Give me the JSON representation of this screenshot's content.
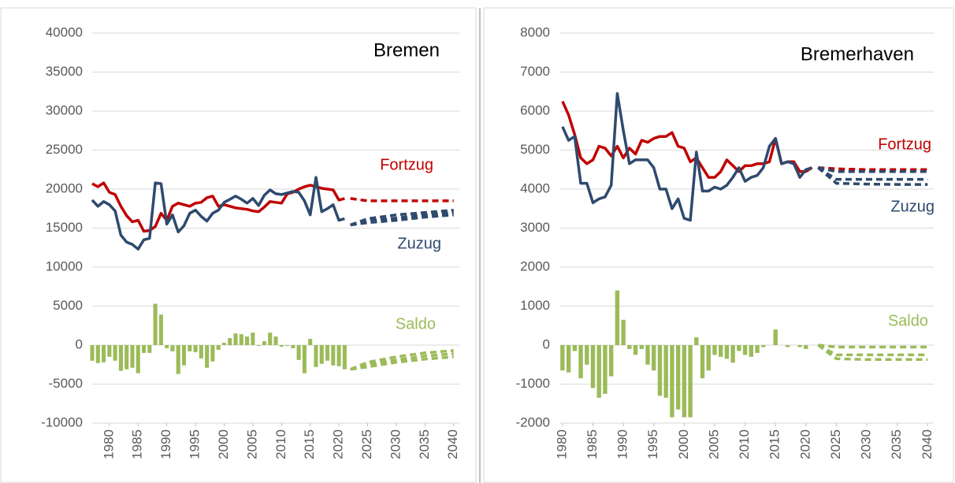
{
  "chart_data": [
    {
      "type": "combo",
      "title": "Bremen",
      "x": [
        1977,
        1978,
        1979,
        1980,
        1981,
        1982,
        1983,
        1984,
        1985,
        1986,
        1987,
        1988,
        1989,
        1990,
        1991,
        1992,
        1993,
        1994,
        1995,
        1996,
        1997,
        1998,
        1999,
        2000,
        2001,
        2002,
        2003,
        2004,
        2005,
        2006,
        2007,
        2008,
        2009,
        2010,
        2011,
        2012,
        2013,
        2014,
        2015,
        2016,
        2017,
        2018,
        2019,
        2020,
        2021
      ],
      "projection_x": [
        2022,
        2025,
        2030,
        2035,
        2040
      ],
      "xlim": [
        1977,
        2041
      ],
      "xticks": [
        1980,
        1985,
        1990,
        1995,
        2000,
        2005,
        2010,
        2015,
        2020,
        2025,
        2030,
        2035,
        2040
      ],
      "ylim": [
        -10000,
        40000
      ],
      "yticks": [
        -10000,
        -5000,
        0,
        5000,
        10000,
        15000,
        20000,
        25000,
        30000,
        35000,
        40000
      ],
      "grid": true,
      "series": [
        {
          "name": "Fortzug",
          "color": "#c00000",
          "type": "line",
          "values": [
            20700,
            20300,
            20800,
            19600,
            19300,
            17800,
            16600,
            15800,
            16000,
            14600,
            14700,
            15200,
            16900,
            16000,
            17800,
            18200,
            18000,
            17800,
            18200,
            18300,
            18900,
            19100,
            17800,
            18000,
            17800,
            17600,
            17500,
            17400,
            17200,
            17100,
            17700,
            18400,
            18300,
            18200,
            19400,
            19600,
            20000,
            20300,
            20500,
            20300,
            20100,
            20000,
            19900,
            18600,
            18800
          ],
          "projections": [
            [
              18800,
              18500,
              18500,
              18500,
              18500
            ]
          ]
        },
        {
          "name": "Zuzug",
          "color": "#2e4a6e",
          "type": "line",
          "values": [
            18600,
            17800,
            18400,
            18000,
            17200,
            14100,
            13200,
            12900,
            12300,
            13500,
            13700,
            20800,
            20700,
            15500,
            16700,
            14500,
            15300,
            16900,
            17300,
            16500,
            15900,
            16900,
            17300,
            18300,
            18700,
            19100,
            18700,
            18200,
            18800,
            17900,
            19200,
            19900,
            19400,
            19300,
            19500,
            19700,
            19600,
            18500,
            16700,
            21500,
            17100,
            17500,
            18000,
            16000,
            16200
          ],
          "projections": [
            [
              15400,
              16200,
              16700,
              17000,
              17300
            ],
            [
              15400,
              15900,
              16300,
              16700,
              17000
            ],
            [
              15400,
              15700,
              16000,
              16400,
              16700
            ]
          ]
        },
        {
          "name": "Saldo",
          "color": "#9bbb59",
          "type": "bar",
          "values": [
            -2000,
            -2300,
            -2200,
            -1500,
            -2000,
            -3300,
            -3100,
            -2900,
            -3600,
            -1000,
            -1000,
            5300,
            3900,
            -400,
            -800,
            -3700,
            -2600,
            -800,
            -900,
            -1700,
            -2900,
            -2100,
            -600,
            300,
            900,
            1500,
            1400,
            1100,
            1600,
            -100,
            500,
            1600,
            1100,
            -200,
            -100,
            -400,
            -1900,
            -3600,
            800,
            -2800,
            -2400,
            -2000,
            -2600,
            -2700,
            -3100
          ],
          "projections": [
            [
              -3100,
              -2200,
              -1500,
              -1000,
              -700
            ],
            [
              -3100,
              -2500,
              -1900,
              -1400,
              -1100
            ],
            [
              -3100,
              -2800,
              -2200,
              -1800,
              -1500
            ]
          ]
        }
      ]
    },
    {
      "type": "combo",
      "title": "Bremerhaven",
      "x": [
        1980,
        1981,
        1982,
        1983,
        1984,
        1985,
        1986,
        1987,
        1988,
        1989,
        1990,
        1991,
        1992,
        1993,
        1994,
        1995,
        1996,
        1997,
        1998,
        1999,
        2000,
        2001,
        2002,
        2003,
        2004,
        2005,
        2006,
        2007,
        2008,
        2009,
        2010,
        2011,
        2012,
        2013,
        2014,
        2015,
        2016,
        2017,
        2018,
        2019,
        2020,
        2021
      ],
      "projection_x": [
        2022,
        2025,
        2030,
        2035,
        2040
      ],
      "xlim": [
        1979.5,
        2041
      ],
      "xticks": [
        1980,
        1985,
        1990,
        1995,
        2000,
        2005,
        2010,
        2015,
        2020,
        2025,
        2030,
        2035,
        2040
      ],
      "ylim": [
        -2000,
        8000
      ],
      "yticks": [
        -2000,
        -1000,
        0,
        1000,
        2000,
        3000,
        4000,
        5000,
        6000,
        7000,
        8000
      ],
      "grid": true,
      "series": [
        {
          "name": "Fortzug",
          "color": "#c00000",
          "type": "line",
          "values": [
            6250,
            5900,
            5400,
            4800,
            4650,
            4750,
            5100,
            5050,
            4850,
            5100,
            4800,
            5050,
            4900,
            5250,
            5200,
            5300,
            5350,
            5350,
            5450,
            5100,
            5050,
            4700,
            4800,
            4550,
            4300,
            4300,
            4450,
            4750,
            4600,
            4450,
            4600,
            4600,
            4650,
            4650,
            4700,
            5300,
            4650,
            4700,
            4700,
            4450,
            4450,
            4550
          ],
          "projections": [
            [
              4550,
              4520,
              4500,
              4500,
              4500
            ]
          ]
        },
        {
          "name": "Zuzug",
          "color": "#2e4a6e",
          "type": "line",
          "values": [
            5600,
            5250,
            5350,
            4150,
            4150,
            3650,
            3750,
            3800,
            4100,
            6450,
            5500,
            4650,
            4750,
            4750,
            4750,
            4550,
            4000,
            4000,
            3500,
            3750,
            3250,
            3200,
            4950,
            3950,
            3950,
            4050,
            4000,
            4100,
            4300,
            4550,
            4200,
            4300,
            4350,
            4550,
            5100,
            5300,
            4650,
            4700,
            4650,
            4300,
            4500,
            4550
          ],
          "projections": [
            [
              4550,
              4450,
              4450,
              4450,
              4450
            ],
            [
              4550,
              4250,
              4250,
              4250,
              4250
            ],
            [
              4550,
              4150,
              4130,
              4120,
              4120
            ]
          ]
        },
        {
          "name": "Saldo",
          "color": "#9bbb59",
          "type": "bar",
          "values": [
            -650,
            -700,
            -150,
            -850,
            -500,
            -1100,
            -1350,
            -1250,
            -800,
            1400,
            650,
            -100,
            -250,
            -100,
            -500,
            -650,
            -1300,
            -1350,
            -1850,
            -1650,
            -1850,
            -1850,
            200,
            -850,
            -650,
            -250,
            -300,
            -350,
            -450,
            -150,
            -250,
            -300,
            -200,
            -50,
            0,
            400,
            0,
            -50,
            0,
            -50,
            -100,
            0
          ],
          "projections": [
            [
              0,
              -50,
              -50,
              -50,
              -50
            ],
            [
              0,
              -250,
              -250,
              -250,
              -250
            ],
            [
              0,
              -350,
              -370,
              -370,
              -370
            ]
          ]
        }
      ]
    }
  ]
}
